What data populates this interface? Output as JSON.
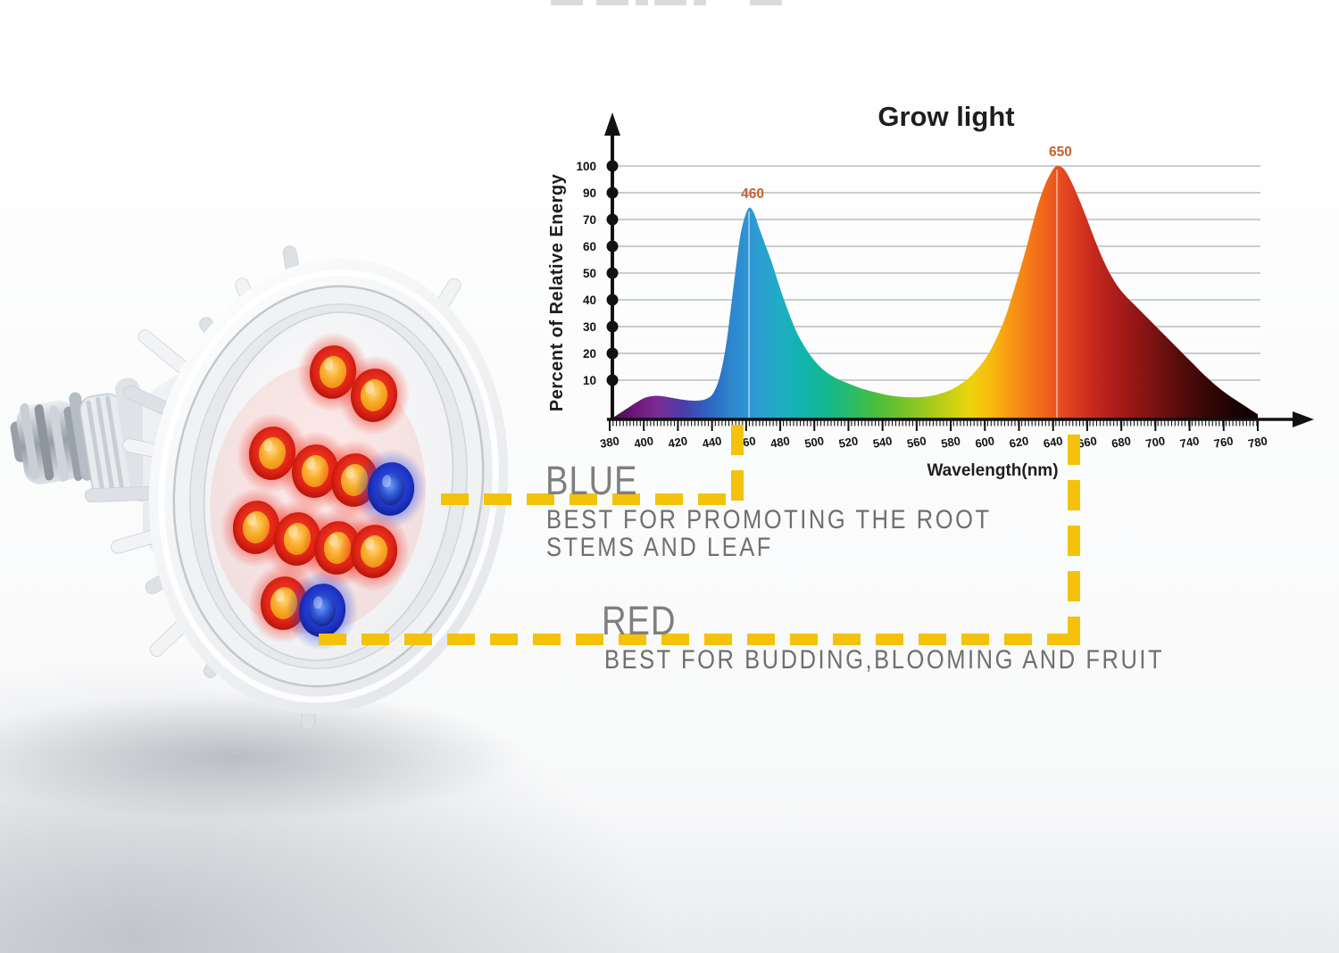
{
  "chart_data": {
    "type": "area",
    "title": "Grow light",
    "xlabel": "Wavelength(nm)",
    "ylabel": "Percent of Relative Energy",
    "xlim": [
      380,
      780
    ],
    "ylim": [
      0,
      100
    ],
    "grid": "horizontal-only",
    "legend": "none",
    "x_tick_labels": [
      "380",
      "400",
      "420",
      "440",
      "460",
      "480",
      "500",
      "520",
      "540",
      "560",
      "580",
      "600",
      "620",
      "640",
      "660",
      "680",
      "700",
      "740",
      "760",
      "780"
    ],
    "y_tick_labels": [
      "100",
      "90",
      "70",
      "60",
      "50",
      "40",
      "30",
      "20",
      "10"
    ],
    "peaks": [
      {
        "label": "460",
        "nm": 466,
        "value": 83.5
      },
      {
        "label": "650",
        "nm": 656,
        "value": 100
      }
    ],
    "series": [
      {
        "name": "grow-light-spectrum",
        "points": [
          [
            380,
            0
          ],
          [
            384,
            1.5
          ],
          [
            390,
            4
          ],
          [
            396,
            6.5
          ],
          [
            402,
            8.6
          ],
          [
            408,
            9.3
          ],
          [
            414,
            9
          ],
          [
            420,
            8.3
          ],
          [
            427,
            7.6
          ],
          [
            434,
            7.4
          ],
          [
            440,
            8.2
          ],
          [
            444,
            10.5
          ],
          [
            448,
            17
          ],
          [
            452,
            30
          ],
          [
            456,
            50
          ],
          [
            460,
            70
          ],
          [
            463,
            79
          ],
          [
            466,
            83.5
          ],
          [
            469,
            81.5
          ],
          [
            472,
            76
          ],
          [
            476,
            69
          ],
          [
            480,
            62
          ],
          [
            485,
            52
          ],
          [
            490,
            43
          ],
          [
            495,
            35
          ],
          [
            500,
            29
          ],
          [
            506,
            23.5
          ],
          [
            512,
            19.5
          ],
          [
            519,
            16.5
          ],
          [
            526,
            14.5
          ],
          [
            534,
            12.5
          ],
          [
            542,
            11
          ],
          [
            550,
            9.8
          ],
          [
            558,
            9
          ],
          [
            566,
            8.7
          ],
          [
            574,
            8.9
          ],
          [
            582,
            9.8
          ],
          [
            590,
            11.5
          ],
          [
            598,
            14.5
          ],
          [
            605,
            18.5
          ],
          [
            612,
            24
          ],
          [
            618,
            31
          ],
          [
            624,
            40
          ],
          [
            630,
            52
          ],
          [
            636,
            65
          ],
          [
            641,
            77
          ],
          [
            645,
            86
          ],
          [
            649,
            93
          ],
          [
            653,
            98
          ],
          [
            656,
            100
          ],
          [
            660,
            99
          ],
          [
            664,
            95
          ],
          [
            669,
            88
          ],
          [
            674,
            80
          ],
          [
            680,
            70
          ],
          [
            686,
            61
          ],
          [
            692,
            54
          ],
          [
            698,
            49
          ],
          [
            705,
            44.5
          ],
          [
            712,
            40
          ],
          [
            719,
            35.5
          ],
          [
            726,
            31
          ],
          [
            733,
            26.5
          ],
          [
            740,
            22
          ],
          [
            747,
            17.5
          ],
          [
            754,
            13.5
          ],
          [
            761,
            10
          ],
          [
            768,
            7
          ],
          [
            774,
            4.5
          ],
          [
            780,
            2
          ]
        ]
      }
    ],
    "spectrum_gradient": [
      [
        380,
        "#3F0846"
      ],
      [
        395,
        "#6D1677"
      ],
      [
        410,
        "#7A2D94"
      ],
      [
        425,
        "#4B3BAB"
      ],
      [
        440,
        "#2F62C1"
      ],
      [
        455,
        "#2E86CD"
      ],
      [
        470,
        "#2E9BD3"
      ],
      [
        485,
        "#1FADC4"
      ],
      [
        500,
        "#10B5AB"
      ],
      [
        515,
        "#15B88C"
      ],
      [
        530,
        "#2BBB64"
      ],
      [
        545,
        "#4CBD3C"
      ],
      [
        560,
        "#73C22A"
      ],
      [
        575,
        "#9CC91E"
      ],
      [
        590,
        "#C9D014"
      ],
      [
        602,
        "#ECD40C"
      ],
      [
        614,
        "#F8BC0E"
      ],
      [
        626,
        "#F89C13"
      ],
      [
        638,
        "#F67D17"
      ],
      [
        650,
        "#F0601C"
      ],
      [
        662,
        "#E24420"
      ],
      [
        676,
        "#CB2C1E"
      ],
      [
        690,
        "#B01F1A"
      ],
      [
        705,
        "#921715"
      ],
      [
        720,
        "#701110"
      ],
      [
        735,
        "#500B0A"
      ],
      [
        750,
        "#330605"
      ],
      [
        765,
        "#1C0303"
      ],
      [
        780,
        "#0F0101"
      ]
    ]
  },
  "annotations": {
    "blue": {
      "label": "BLUE",
      "line1": "BEST FOR PROMOTING THE ROOT",
      "line2": "STEMS AND LEAF"
    },
    "red": {
      "label": "RED",
      "line1": "BEST FOR BUDDING,BLOOMING AND FRUIT"
    }
  },
  "bulb": {
    "led_count_red": 10,
    "led_count_blue": 2
  },
  "colors": {
    "callout_yellow": "#F4C20A",
    "label_gray": "#7F7F7F",
    "desc_gray": "#6F6F6F",
    "title_color": "#1E1E1E",
    "axis_color": "#121212",
    "grid_color": "#B9BCBE",
    "peak_label_color": "#C2622E",
    "led_red": "#E23122",
    "led_amber": "#F7A51F",
    "led_blue": "#1C3ED6"
  }
}
